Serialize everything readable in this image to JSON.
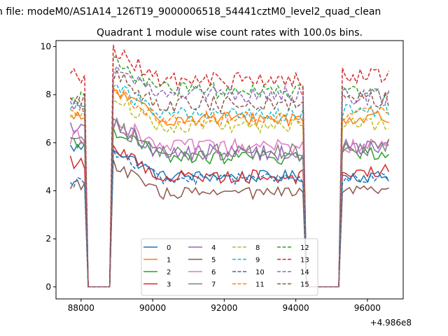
{
  "figure": {
    "suptitle": "n file: modeM0/AS1A14_126T19_9000006518_54441cztM0_level2_quad_clean"
  },
  "chart_data": {
    "type": "line",
    "title": "Quadrant 1 module wise count rates with 100.0s bins.",
    "xlabel": "",
    "ylabel": "",
    "x_offset_label": "+4.986e8",
    "xlim": [
      87300,
      97000
    ],
    "ylim": [
      -0.5,
      10.25
    ],
    "x_ticks": [
      88000,
      90000,
      92000,
      94000,
      96000
    ],
    "x_tick_labels": [
      "88000",
      "90000",
      "92000",
      "94000",
      "96000"
    ],
    "y_ticks": [
      0,
      2,
      4,
      6,
      8,
      10
    ],
    "y_tick_labels": [
      "0",
      "2",
      "4",
      "6",
      "8",
      "10"
    ],
    "grid": false,
    "legend_position": "bottom-center",
    "legend_columns": 4,
    "x_segments": [
      [
        87700,
        88100
      ],
      [
        88200,
        88800
      ],
      [
        88900,
        94200
      ],
      [
        94300,
        95200
      ],
      [
        95300,
        96600
      ]
    ],
    "series": [
      {
        "name": "0",
        "color": "#1f77b4",
        "dash": "solid",
        "levels": [
          5.8,
          0,
          4.6,
          0,
          4.6
        ],
        "noise": 0.25
      },
      {
        "name": "1",
        "color": "#ff7f0e",
        "dash": "solid",
        "levels": [
          7.0,
          0,
          7.0,
          0,
          7.0
        ],
        "noise": 0.3
      },
      {
        "name": "2",
        "color": "#2ca02c",
        "dash": "solid",
        "levels": [
          6.0,
          0,
          5.4,
          0,
          5.6
        ],
        "noise": 0.3
      },
      {
        "name": "3",
        "color": "#d62728",
        "dash": "solid",
        "levels": [
          5.2,
          0,
          4.6,
          0,
          4.8
        ],
        "noise": 0.3
      },
      {
        "name": "4",
        "color": "#9467bd",
        "dash": "solid",
        "levels": [
          6.5,
          0,
          5.6,
          0,
          5.8
        ],
        "noise": 0.35
      },
      {
        "name": "5",
        "color": "#8c564b",
        "dash": "solid",
        "levels": [
          4.3,
          0,
          3.9,
          0,
          4.0
        ],
        "noise": 0.25
      },
      {
        "name": "6",
        "color": "#e377c2",
        "dash": "solid",
        "levels": [
          6.2,
          0,
          5.8,
          0,
          5.9
        ],
        "noise": 0.35
      },
      {
        "name": "7",
        "color": "#7f7f7f",
        "dash": "solid",
        "levels": [
          6.4,
          0,
          5.6,
          0,
          5.8
        ],
        "noise": 0.35
      },
      {
        "name": "8",
        "color": "#bcbd22",
        "dash": "dashed",
        "levels": [
          7.2,
          0,
          6.7,
          0,
          6.8
        ],
        "noise": 0.3
      },
      {
        "name": "9",
        "color": "#17becf",
        "dash": "dashed",
        "levels": [
          7.5,
          0,
          7.2,
          0,
          7.3
        ],
        "noise": 0.3
      },
      {
        "name": "10",
        "color": "#1f77b4",
        "dash": "dashed",
        "levels": [
          4.4,
          0,
          4.5,
          0,
          4.5
        ],
        "noise": 0.25
      },
      {
        "name": "11",
        "color": "#ff7f0e",
        "dash": "dashed",
        "levels": [
          7.4,
          0,
          7.0,
          0,
          7.2
        ],
        "noise": 0.3
      },
      {
        "name": "12",
        "color": "#2ca02c",
        "dash": "dashed",
        "levels": [
          7.8,
          0,
          8.2,
          0,
          8.0
        ],
        "noise": 0.35
      },
      {
        "name": "13",
        "color": "#d62728",
        "dash": "dashed",
        "levels": [
          8.8,
          0,
          8.6,
          0,
          8.8
        ],
        "noise": 0.35
      },
      {
        "name": "14",
        "color": "#9467bd",
        "dash": "dashed",
        "levels": [
          7.6,
          0,
          8.0,
          0,
          7.9
        ],
        "noise": 0.35
      },
      {
        "name": "15",
        "color": "#8c564b",
        "dash": "dashed",
        "levels": [
          7.7,
          0,
          7.6,
          0,
          7.8
        ],
        "noise": 0.35
      }
    ]
  }
}
